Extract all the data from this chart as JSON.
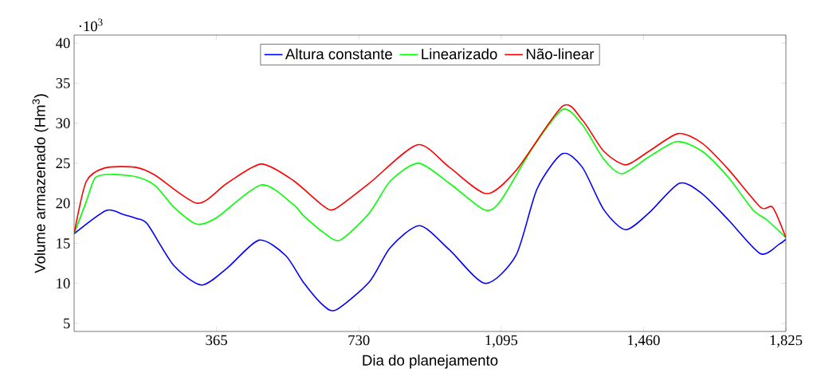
{
  "chart_data": {
    "type": "line",
    "xlabel": "Dia do planejamento",
    "ylabel": "Volume armazenado (Hm$^{3}$)",
    "annotations": [
      "·10$^{3}$"
    ],
    "xlim": [
      0,
      1825
    ],
    "ylim": [
      4,
      41
    ],
    "xticks": [
      {
        "value": 365,
        "label": "365"
      },
      {
        "value": 730,
        "label": "730"
      },
      {
        "value": 1095,
        "label": "1,095"
      },
      {
        "value": 1460,
        "label": "1,460"
      },
      {
        "value": 1825,
        "label": "1,825"
      }
    ],
    "yticks": [
      5,
      10,
      15,
      20,
      25,
      30,
      35,
      40
    ],
    "grid": false,
    "legend": "top",
    "marker": "none",
    "line_style": "solid",
    "series": [
      {
        "name": "Altura constante",
        "color": "#0000ff",
        "x": [
          0,
          82,
          126,
          160,
          188,
          256,
          327,
          392,
          474,
          542,
          587,
          638,
          672,
          757,
          811,
          886,
          962,
          1054,
          1133,
          1187,
          1252,
          1303,
          1358,
          1414,
          1474,
          1552,
          1610,
          1678,
          1760,
          1808,
          1825
        ],
        "values": [
          16.2,
          19.1,
          18.6,
          18.1,
          17.4,
          12.2,
          9.8,
          11.9,
          15.4,
          13.5,
          10.2,
          7.3,
          6.7,
          10.2,
          14.5,
          17.2,
          14.2,
          10.0,
          13.5,
          21.8,
          26.2,
          24.5,
          19.2,
          16.7,
          18.8,
          22.5,
          21.2,
          17.9,
          13.7,
          14.9,
          15.5
        ]
      },
      {
        "name": "Linearizado",
        "color": "#00ff00",
        "x": [
          0,
          31,
          54,
          95,
          160,
          208,
          256,
          314,
          365,
          480,
          563,
          587,
          638,
          682,
          757,
          811,
          883,
          962,
          1051,
          1092,
          1174,
          1252,
          1303,
          1358,
          1405,
          1474,
          1545,
          1610,
          1678,
          1740,
          1777,
          1825
        ],
        "values": [
          16.2,
          20.2,
          23.2,
          23.6,
          23.3,
          22.2,
          19.5,
          17.4,
          18.2,
          22.3,
          19.8,
          18.5,
          16.4,
          15.4,
          18.8,
          22.8,
          25.0,
          22.5,
          19.2,
          20.2,
          26.8,
          31.7,
          29.8,
          25.5,
          23.7,
          25.8,
          27.7,
          26.5,
          23.2,
          19.2,
          17.9,
          15.7
        ]
      },
      {
        "name": "Não-linear",
        "color": "#ff0000",
        "x": [
          0,
          31,
          78,
          157,
          208,
          316,
          392,
          480,
          563,
          638,
          669,
          757,
          880,
          962,
          1057,
          1133,
          1252,
          1303,
          1358,
          1414,
          1474,
          1549,
          1610,
          1678,
          1760,
          1791,
          1825
        ],
        "values": [
          16.2,
          22.7,
          24.4,
          24.5,
          23.5,
          20.0,
          22.5,
          24.9,
          22.8,
          19.7,
          19.3,
          22.5,
          27.3,
          24.5,
          21.2,
          24.1,
          32.1,
          30.4,
          26.5,
          24.8,
          26.5,
          28.7,
          27.5,
          24.2,
          19.5,
          19.5,
          15.7
        ]
      }
    ]
  }
}
